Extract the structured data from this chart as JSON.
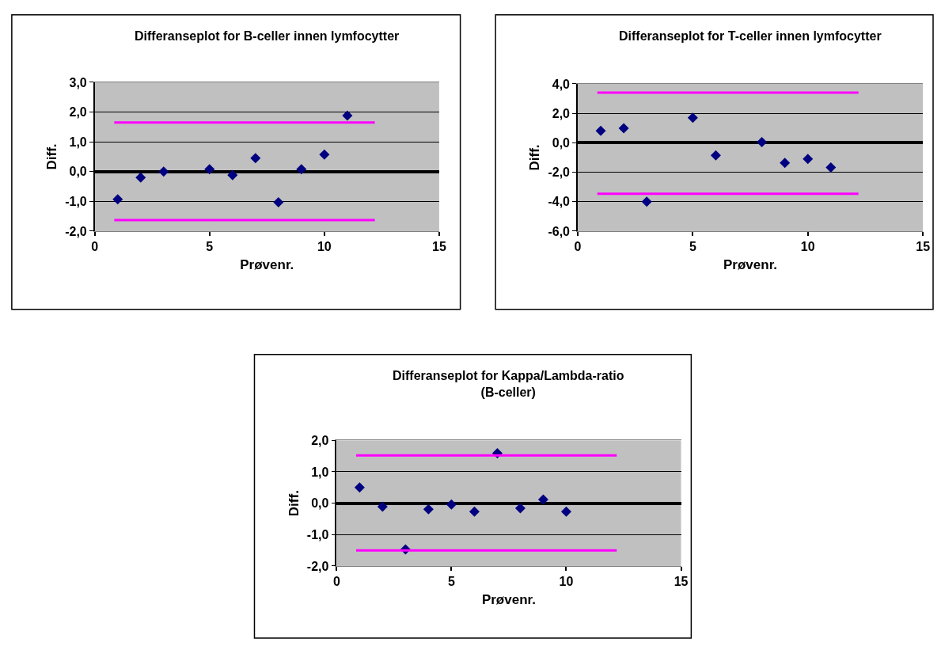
{
  "chart_data": [
    {
      "type": "scatter",
      "title": "Differanseplot for B-celler innen lymfocytter",
      "xlabel": "Prøvenr.",
      "ylabel": "Diff.",
      "marker": "diamond",
      "grid": "y",
      "series": [
        {
          "color": "#000080",
          "x": [
            1,
            2,
            3,
            5,
            6,
            7,
            8,
            9,
            10,
            11
          ],
          "values": [
            -0.93,
            -0.2,
            0.0,
            0.08,
            -0.12,
            0.45,
            -1.03,
            0.08,
            0.57,
            1.88
          ]
        },
        {
          "type": "line",
          "marker": "none",
          "color": "#ff00ff",
          "x": [
            0.85,
            12.2
          ],
          "values": [
            1.65,
            1.65
          ]
        },
        {
          "type": "line",
          "marker": "none",
          "color": "#ff00ff",
          "x": [
            0.85,
            12.2
          ],
          "values": [
            -1.63,
            -1.63
          ]
        }
      ],
      "xlim": [
        0,
        15
      ],
      "xticks": [
        0,
        5,
        10,
        15
      ],
      "ylim": [
        -2,
        3
      ],
      "yticks": [
        {
          "value": -2,
          "label": "-2,0"
        },
        {
          "value": -1,
          "label": "-1,0"
        },
        {
          "value": 0,
          "label": "0,0"
        },
        {
          "value": 1,
          "label": "1,0"
        },
        {
          "value": 2,
          "label": "2,0"
        },
        {
          "value": 3,
          "label": "3,0"
        }
      ]
    },
    {
      "type": "scatter",
      "title": "Differanseplot for T-celler innen lymfocytter",
      "xlabel": "Prøvenr.",
      "ylabel": "Diff.",
      "marker": "diamond",
      "grid": "y",
      "series": [
        {
          "color": "#000080",
          "x": [
            1,
            2,
            3,
            5,
            6,
            8,
            9,
            10,
            11
          ],
          "values": [
            0.81,
            0.98,
            -4.0,
            1.7,
            -0.85,
            0.04,
            -1.36,
            -1.1,
            -1.68
          ]
        },
        {
          "type": "line",
          "marker": "none",
          "color": "#ff00ff",
          "x": [
            0.85,
            12.2
          ],
          "values": [
            3.4,
            3.4
          ]
        },
        {
          "type": "line",
          "marker": "none",
          "color": "#ff00ff",
          "x": [
            0.85,
            12.2
          ],
          "values": [
            -3.46,
            -3.46
          ]
        }
      ],
      "xlim": [
        0,
        15
      ],
      "xticks": [
        0,
        5,
        10,
        15
      ],
      "ylim": [
        -6,
        4
      ],
      "yticks": [
        {
          "value": -6,
          "label": "-6,0"
        },
        {
          "value": -4,
          "label": "-4,0"
        },
        {
          "value": -2,
          "label": "-2,0"
        },
        {
          "value": 0,
          "label": "0,0"
        },
        {
          "value": 2,
          "label": "2,0"
        },
        {
          "value": 4,
          "label": "4,0"
        }
      ]
    },
    {
      "type": "scatter",
      "title": "Differanseplot for Kappa/Lambda-ratio (B-celler)",
      "xlabel": "Prøvenr.",
      "ylabel": "Diff.",
      "marker": "diamond",
      "grid": "y",
      "series": [
        {
          "color": "#000080",
          "x": [
            1,
            2,
            3,
            4,
            5,
            6,
            7,
            8,
            9,
            10
          ],
          "values": [
            0.5,
            -0.11,
            -1.47,
            -0.19,
            -0.04,
            -0.27,
            1.59,
            -0.16,
            0.12,
            -0.27
          ]
        },
        {
          "type": "line",
          "marker": "none",
          "color": "#ff00ff",
          "x": [
            0.85,
            12.2
          ],
          "values": [
            1.52,
            1.52
          ]
        },
        {
          "type": "line",
          "marker": "none",
          "color": "#ff00ff",
          "x": [
            0.85,
            12.2
          ],
          "values": [
            -1.5,
            -1.5
          ]
        }
      ],
      "xlim": [
        0,
        15
      ],
      "xticks": [
        0,
        5,
        10,
        15
      ],
      "ylim": [
        -2,
        2
      ],
      "yticks": [
        {
          "value": -2,
          "label": "-2,0"
        },
        {
          "value": -1,
          "label": "-1,0"
        },
        {
          "value": 0,
          "label": "0,0"
        },
        {
          "value": 1,
          "label": "1,0"
        },
        {
          "value": 2,
          "label": "2,0"
        }
      ]
    }
  ]
}
